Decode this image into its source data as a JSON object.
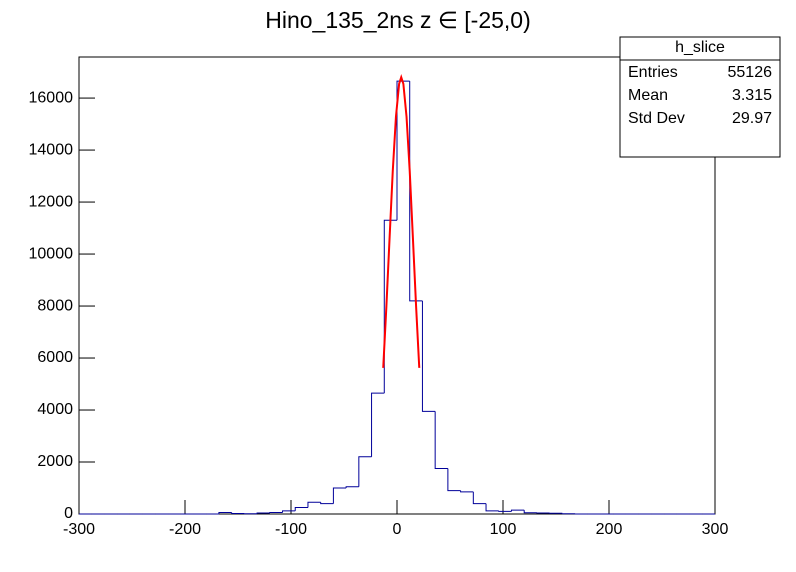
{
  "chart_data": {
    "type": "histogram",
    "title": "Hino_135_2ns z  ∈ [-25,0)",
    "color": "#000099",
    "bins": [
      -300,
      -288,
      -276,
      -264,
      -252,
      -240,
      -228,
      -216,
      -204,
      -192,
      -180,
      -168,
      -156,
      -144,
      -132,
      -120,
      -108,
      -96,
      -84,
      -72,
      -60,
      -48,
      -36,
      -24,
      -12,
      0,
      12,
      24,
      36,
      48,
      60,
      72,
      84,
      96,
      108,
      120,
      132,
      144,
      156,
      168,
      180,
      192,
      204,
      216,
      228,
      240,
      252,
      264,
      276,
      288,
      300
    ],
    "values": [
      0,
      0,
      0,
      0,
      0,
      0,
      0,
      0,
      0,
      0,
      0,
      60,
      20,
      10,
      40,
      60,
      120,
      250,
      450,
      400,
      1000,
      1050,
      2200,
      4650,
      11300,
      16650,
      8200,
      3950,
      1750,
      900,
      850,
      400,
      120,
      100,
      150,
      50,
      40,
      30,
      10,
      0,
      0,
      0,
      0,
      0,
      0,
      0,
      0,
      0,
      0,
      0
    ],
    "fit": {
      "color": "#ff0000",
      "x": [
        -13,
        -10,
        -7,
        -4,
        -1,
        2,
        4,
        6,
        9,
        12,
        15,
        18,
        21
      ],
      "y": [
        5621,
        8000,
        10620,
        13190,
        15280,
        16550,
        16800,
        16550,
        15280,
        13190,
        10620,
        8000,
        5621
      ]
    },
    "xlim": [
      -300,
      300
    ],
    "xticks": [
      -300,
      -200,
      -100,
      0,
      100,
      200,
      300
    ],
    "ylim": [
      0,
      17580
    ],
    "yticks": [
      0,
      2000,
      4000,
      6000,
      8000,
      10000,
      12000,
      14000,
      16000
    ],
    "stats": {
      "title": "h_slice",
      "rows": [
        [
          "Entries",
          "55126"
        ],
        [
          "Mean",
          "3.315"
        ],
        [
          "Std Dev",
          "29.97"
        ]
      ]
    }
  }
}
